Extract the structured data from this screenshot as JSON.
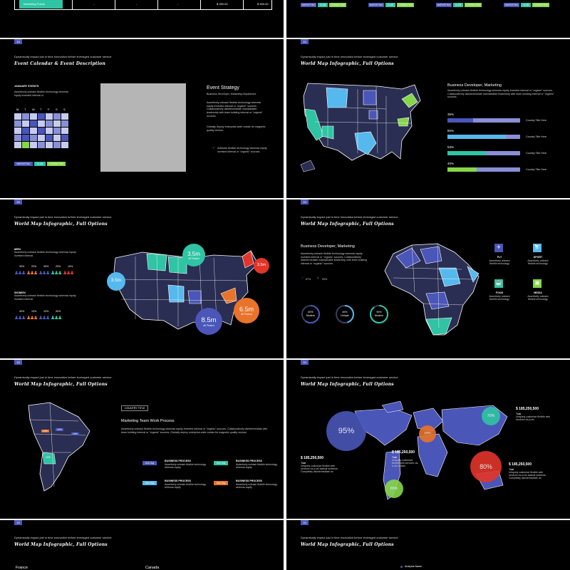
{
  "colors": {
    "bg": "#000000",
    "navy": "#2a2e52",
    "blue": "#4a56b8",
    "teal": "#2fc4a4",
    "sky": "#56b9ee",
    "lime": "#86d64a",
    "orange": "#e8732a",
    "red": "#e2352a",
    "lav": "#8890d6"
  },
  "common": {
    "tagline": "Dynamically impact just in time innovation before leveraged customer service.",
    "map_title": "World Map Infographic, Full Options",
    "slide_no": "15"
  },
  "top_left": {
    "row_label": "Marketing Points",
    "cells": [
      "-",
      "-",
      "-",
      "$ 250.00",
      "$ 300.00"
    ]
  },
  "top_right": {
    "pills": [
      [
        "MARKETING",
        "CLUB",
        "CONSULTING"
      ],
      [
        "MARKETING",
        "CLUB",
        "CONSULTING"
      ],
      [
        "MARKETING",
        "CLUB",
        "CONSULTING"
      ],
      [
        "MARKETING",
        "CLUB",
        "CONSULTING"
      ]
    ]
  },
  "s1": {
    "title": "Event Calendar & Event Description",
    "jan_heading": "JANUARY EVENTS",
    "jan_text": "Assertively unleash flexible technology whereas equity invested internal or",
    "weekdays": [
      "M",
      "T",
      "W",
      "T",
      "F",
      "S",
      "S"
    ],
    "pills": [
      "MARKETING",
      "CLUB",
      "CONSULTING"
    ],
    "strategy_title": "Event Strategy",
    "strategy_sub": "Business Developer, Marketing Department",
    "strategy_p1": "Assertively unleash flexible technology whereas equity invested internal or \"organic\" sources. Collaboratively disintermediate maintainable leadership with team building internal or \"organic\" sources.",
    "strategy_p2": "Globally deploy enterprise-wide vortals for magnetic quality vectors.",
    "check_text": "Autleash flexible technology whereas equity invested internal or \"organic\" sources."
  },
  "s2": {
    "heading": "Business Developer, Marketing",
    "text": "Assertively unleash flexible technology whereas equity invested internal or \"organic\" sources. Collaboratively disintermediate maintainable leadership with team building internal or \"organic\" sources.",
    "bars": [
      {
        "pct": "35%",
        "value": 0.35,
        "label": "Country Title Here",
        "color": "#4a56b8"
      },
      {
        "pct": "80%",
        "value": 0.8,
        "label": "Country Title Here",
        "color": "#56b9ee"
      },
      {
        "pct": "53%",
        "value": 0.53,
        "label": "Country Title Here",
        "color": "#2fc4a4"
      },
      {
        "pct": "40%",
        "value": 0.4,
        "label": "Country Title Here",
        "color": "#86d64a"
      }
    ]
  },
  "s3": {
    "men_heading": "MEN",
    "men_text": "Assertively unleash flexible technology whereas equity invested internal",
    "men_pcts": [
      "30%",
      "20%",
      "30%",
      "20%",
      "10%"
    ],
    "women_heading": "WOMEN",
    "women_text": "Assertively unleash flexible technology whereas equity invested internal",
    "women_pcts": [
      "40%",
      "10%",
      "10%",
      "30%"
    ],
    "bubbles": [
      {
        "value": "3.5m",
        "sub": "All Product",
        "color": "#2fc4a4"
      },
      {
        "value": "3.5m",
        "sub": "",
        "color": "#56b9ee"
      },
      {
        "value": "3.5m",
        "sub": "",
        "color": "#e2352a"
      },
      {
        "value": "8.5m",
        "sub": "All Product",
        "color": "#4a56b8"
      },
      {
        "value": "6.5m",
        "sub": "All Product",
        "color": "#e8732a"
      }
    ]
  },
  "s4": {
    "heading": "Business Developer, Marketing",
    "text": "Assertively unleash flexible technology whereas equity invested internal or \"organic\" sources. Collaboratively disintermediate maintainable leadership with team building internal or \"organic\" sources.",
    "male_pct": "67%",
    "female_pct": "33%",
    "rings": [
      {
        "pct": "60%",
        "label": "Modern",
        "value": 0.6
      },
      {
        "pct": "45%",
        "label": "Unique",
        "value": 0.45
      },
      {
        "pct": "90%",
        "label": "Modern",
        "value": 0.9
      }
    ],
    "icons": [
      {
        "label": "FLY",
        "text": "Assertively unleash flexible technology",
        "icon": "plane-icon",
        "color": "#4a56b8"
      },
      {
        "label": "SPORT",
        "text": "Assertively unleash flexible technology",
        "icon": "shoe-icon",
        "color": "#56b9ee"
      },
      {
        "label": "FOOD",
        "text": "Assertively unleash flexible technology",
        "icon": "cup-icon",
        "color": "#2fc4a4"
      },
      {
        "label": "MEDIA",
        "text": "Assertively unleash flexible technology",
        "icon": "media-icon",
        "color": "#86d64a"
      }
    ]
  },
  "s5": {
    "country_title": "COUNTRY TITLE",
    "heading": "Marketing Team Work Process",
    "text": "Assertively unleash flexible technology whereas equity invested internal or \"organic\" sources. Collaboratively disintermediate with team building internal or \"organic\" sources. Globally deploy enterprise-wide vortals for magnetic quality vectors.",
    "map_pcts": [
      "20%",
      "10%",
      "10%",
      "10%"
    ],
    "steps": [
      {
        "tag": "One Day",
        "title": "BUSINESS PROCESS",
        "text": "Assertively unleash flexible technology whereas equity",
        "color": "#4a56b8"
      },
      {
        "tag": "One Day",
        "title": "BUSINESS PROCESS",
        "text": "Assertively unleash flexible technology whereas equity",
        "color": "#2fc4a4"
      },
      {
        "tag": "One Day",
        "title": "BUSINESS PROCESS",
        "text": "Assertively unleash flexible technology whereas equity",
        "color": "#56b9ee"
      },
      {
        "tag": "One Day",
        "title": "BUSINESS PROCESS",
        "text": "Assertively unleash flexible technology whereas equity",
        "color": "#e8732a"
      }
    ]
  },
  "s6": {
    "bubbles": [
      {
        "pct": "95%",
        "color": "#4a56b8"
      },
      {
        "pct": "10%",
        "color": "#e8732a"
      },
      {
        "pct": "70%",
        "color": "#2fc4a4"
      },
      {
        "pct": "80%",
        "color": "#e2352a"
      },
      {
        "pct": "65%",
        "color": "#86d64a"
      }
    ],
    "callouts": [
      {
        "amount": "$ 185,250,500",
        "label": "Total",
        "text": "Uniquely customize flexible web services vis-a-vis"
      },
      {
        "amount": "$ 185,250,500",
        "label": "Total",
        "text": "Uniquely customize flexible web services vis-a-vis tactical schemas. Completely disintermediate an"
      },
      {
        "amount": "$ 185,250,500",
        "label": "Total",
        "text": "Uniquely customize flexible web services vis-a-vis tactical"
      },
      {
        "amount": "$ 185,250,500",
        "label": "Total",
        "text": "Uniquely customize flexible web services vis-a-vis tactical schemas. Completely disintermediate an"
      }
    ]
  },
  "s7": {
    "countries": [
      "France",
      "Canada"
    ]
  },
  "s8": {
    "legend": "Analysis Name"
  }
}
